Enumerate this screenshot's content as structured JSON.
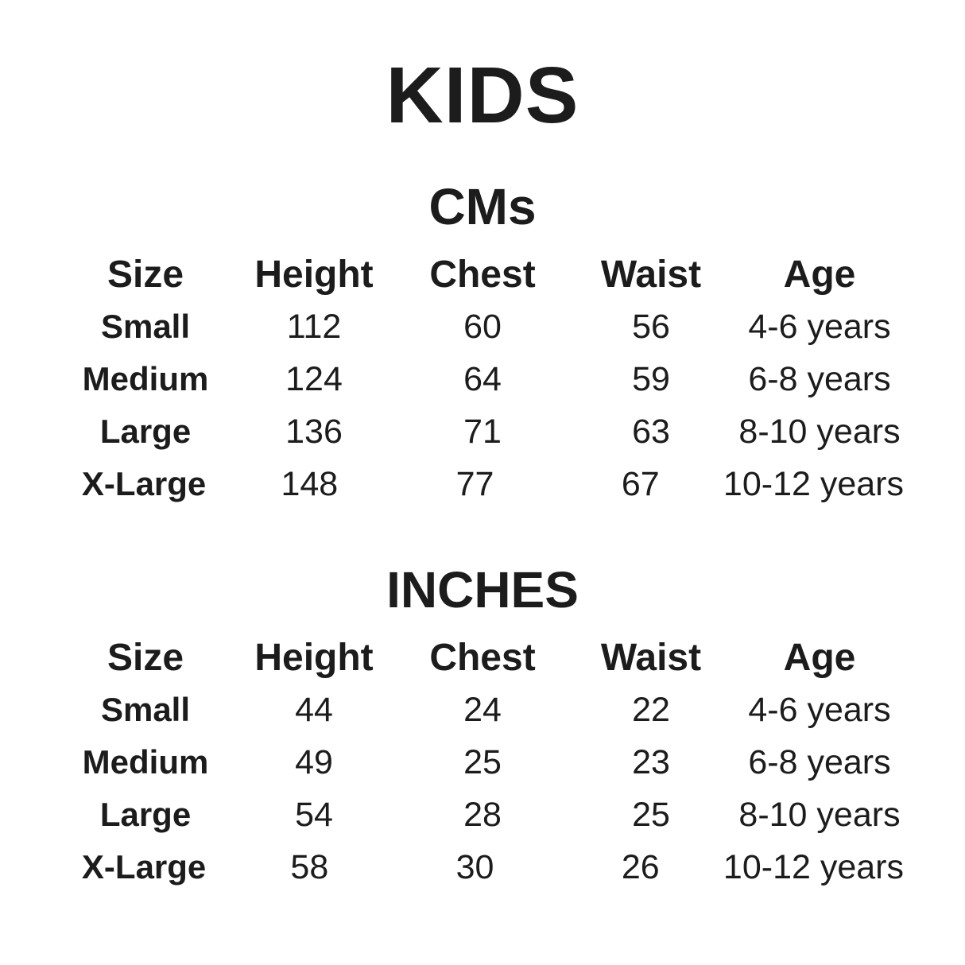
{
  "page_title": "KIDS",
  "colors": {
    "text": "#1c1c1c",
    "background": "#ffffff"
  },
  "chart_data": [
    {
      "type": "table",
      "title": "CMs",
      "columns": [
        "Size",
        "Height",
        "Chest",
        "Waist",
        "Age"
      ],
      "rows": [
        [
          "Small",
          "112",
          "60",
          "56",
          "4-6 years"
        ],
        [
          "Medium",
          "124",
          "64",
          "59",
          "6-8 years"
        ],
        [
          "Large",
          "136",
          "71",
          "63",
          "8-10 years"
        ],
        [
          "X-Large",
          "148",
          "77",
          "67",
          "10-12 years"
        ]
      ]
    },
    {
      "type": "table",
      "title": "INCHES",
      "columns": [
        "Size",
        "Height",
        "Chest",
        "Waist",
        "Age"
      ],
      "rows": [
        [
          "Small",
          "44",
          "24",
          "22",
          "4-6 years"
        ],
        [
          "Medium",
          "49",
          "25",
          "23",
          "6-8 years"
        ],
        [
          "Large",
          "54",
          "28",
          "25",
          "8-10 years"
        ],
        [
          "X-Large",
          "58",
          "30",
          "26",
          "10-12 years"
        ]
      ]
    }
  ]
}
